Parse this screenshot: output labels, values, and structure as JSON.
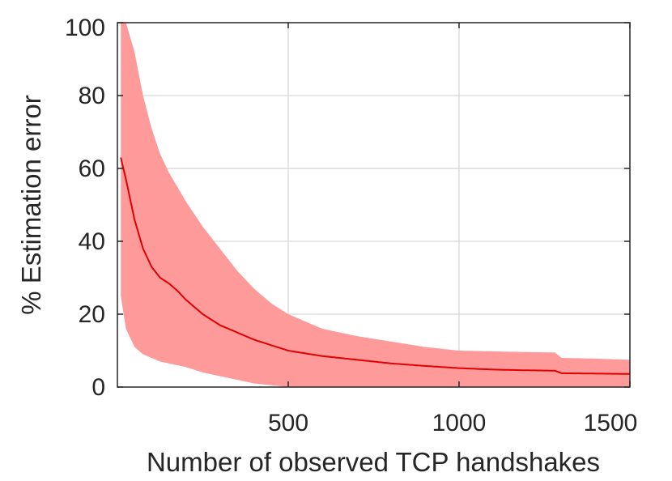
{
  "chart_data": {
    "type": "line",
    "title": "",
    "xlabel": "Number of observed TCP handshakes",
    "ylabel": "% Estimation error",
    "xlim": [
      0,
      1500
    ],
    "ylim": [
      0,
      100
    ],
    "x_ticks": [
      500,
      1000,
      1500
    ],
    "y_ticks": [
      0,
      20,
      40,
      60,
      80,
      100
    ],
    "grid": true,
    "legend": "none",
    "colors": {
      "line": "#e00000",
      "band": "#ff9a9a",
      "axis": "#262626",
      "grid": "#d6d6d6"
    },
    "series": [
      {
        "x": [
          10,
          25,
          50,
          75,
          100,
          125,
          150,
          175,
          200,
          250,
          300,
          350,
          400,
          450,
          500,
          600,
          700,
          800,
          900,
          1000,
          1100,
          1200,
          1280,
          1300,
          1400,
          1500
        ],
        "mean": [
          63,
          57,
          46,
          38,
          33,
          30,
          28.5,
          26.5,
          24,
          20,
          17,
          15,
          13,
          11.5,
          10,
          8.5,
          7.5,
          6.5,
          5.8,
          5.2,
          4.8,
          4.6,
          4.5,
          3.8,
          3.7,
          3.6
        ],
        "upper": [
          100,
          100,
          92,
          80,
          71,
          64,
          59,
          55,
          51,
          44,
          38,
          32,
          27,
          23,
          20,
          16,
          14,
          12.5,
          11,
          10,
          9.8,
          9.6,
          9.5,
          8,
          7.8,
          7.5
        ],
        "lower": [
          25,
          16,
          11,
          9,
          8,
          7,
          6.5,
          6,
          5.5,
          4,
          3,
          2,
          1,
          0.5,
          0,
          0,
          0,
          0,
          0,
          0,
          0,
          0,
          0,
          0,
          0,
          0
        ]
      }
    ]
  }
}
